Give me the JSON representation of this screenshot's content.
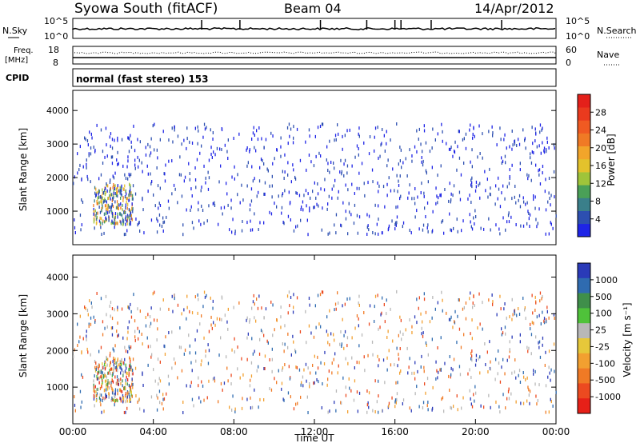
{
  "header": {
    "station": "Syowa South (fitACF)",
    "beam": "Beam 04",
    "date": "14/Apr/2012"
  },
  "noise_panel": {
    "left_label": "N.Sky",
    "left_ticks": [
      "10^5",
      "10^0"
    ],
    "right_ticks": [
      "10^5",
      "10^0"
    ],
    "right_label": "N.Search"
  },
  "freq_panel": {
    "left_label_1": "Freq.",
    "left_label_2": "[MHz]",
    "left_ticks": [
      "18",
      "8"
    ],
    "right_ticks": [
      "60",
      "0"
    ],
    "right_label": "Nave"
  },
  "cpid": {
    "label": "CPID",
    "value": "normal (fast stereo) 153"
  },
  "chart_data": [
    {
      "type": "heatmap",
      "name": "power",
      "ylabel": "Slant Range [km]",
      "xlim_hours": [
        0,
        24
      ],
      "ylim_km": [
        0,
        4600
      ],
      "yticks": [
        "1000",
        "2000",
        "3000",
        "4000"
      ],
      "colorbar_label": "Power [dB]",
      "colorbar_ticks": [
        "4",
        "8",
        "12",
        "16",
        "20",
        "24",
        "28"
      ],
      "colorbar_colors": [
        "#1e24e6",
        "#2d4fb0",
        "#3a7f8a",
        "#4aa057",
        "#9fc43a",
        "#e3c22c",
        "#f2a52a",
        "#f07a25",
        "#f05a22",
        "#ea3a1e",
        "#e4201a"
      ],
      "clusters": [
        {
          "t0": 1.0,
          "t1": 3.0,
          "r0": 600,
          "r1": 1800,
          "density": "high",
          "value": "4-24 dB"
        },
        {
          "t0": 0.0,
          "t1": 24.0,
          "r0": 300,
          "r1": 3600,
          "density": "sparse",
          "value": "4-8 dB"
        }
      ]
    },
    {
      "type": "heatmap",
      "name": "velocity",
      "ylabel": "Slant Range [km]",
      "xlabel": "Time UT",
      "xlim_hours": [
        0,
        24
      ],
      "ylim_km": [
        0,
        4600
      ],
      "yticks": [
        "1000",
        "2000",
        "3000",
        "4000"
      ],
      "xticks": [
        "00:00",
        "04:00",
        "08:00",
        "12:00",
        "16:00",
        "20:00",
        "00:00"
      ],
      "colorbar_label": "Velocity [m s⁻¹]",
      "colorbar_ticks": [
        "1000",
        "500",
        "100",
        "25",
        "-25",
        "-100",
        "-500",
        "-1000"
      ],
      "colorbar_colors": [
        "#2a3ab8",
        "#2f6bb0",
        "#3f8f4a",
        "#4fc23a",
        "#b8b8b8",
        "#e6c83a",
        "#f2a030",
        "#f07a25",
        "#ec4a20",
        "#e62018"
      ],
      "clusters": [
        {
          "t0": 1.0,
          "t1": 3.0,
          "r0": 600,
          "r1": 1800,
          "density": "high",
          "value": "mixed"
        },
        {
          "t0": 0.0,
          "t1": 24.0,
          "r0": 300,
          "r1": 3600,
          "density": "sparse",
          "value": "-500 to 500"
        }
      ]
    }
  ]
}
